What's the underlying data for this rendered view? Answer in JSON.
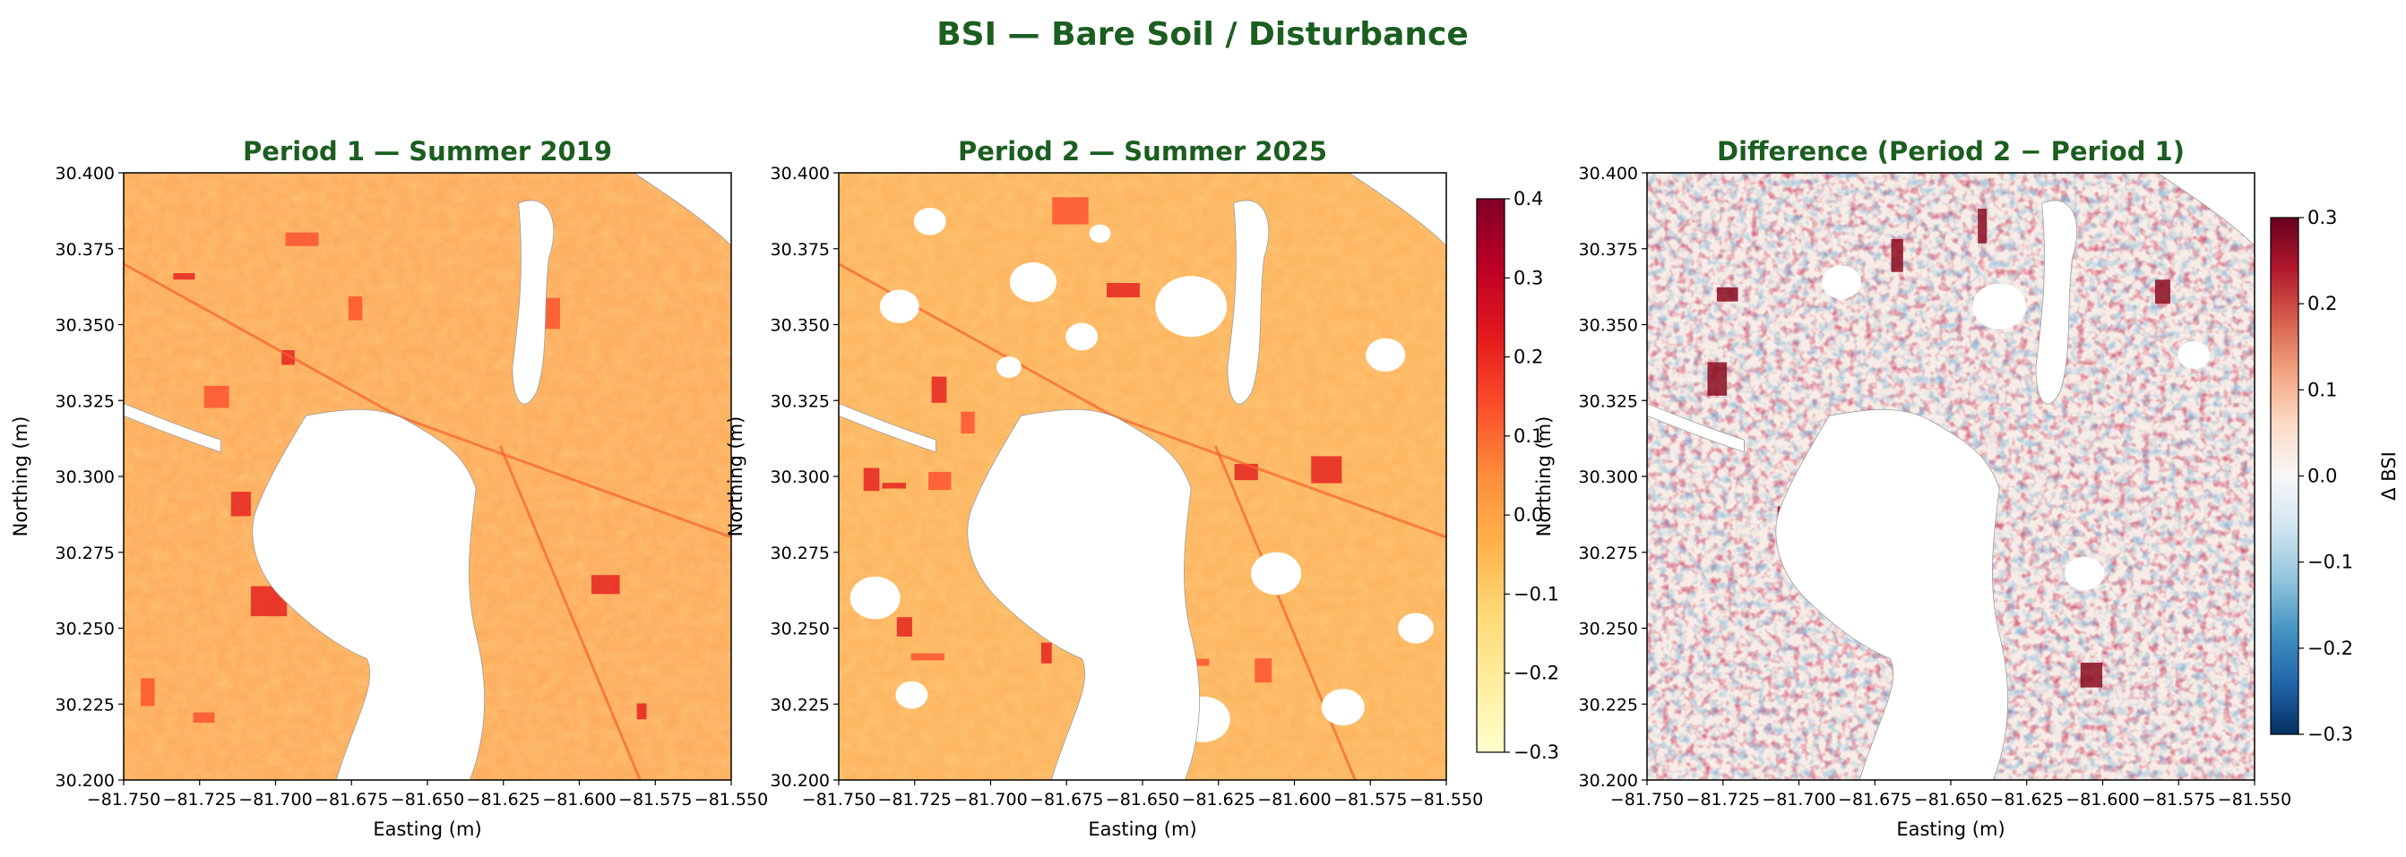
{
  "suptitle": "BSI — Bare Soil / Disturbance",
  "colors": {
    "title": "#1b5e20",
    "water": "#ffffff",
    "ylorrd": [
      "#ffffcc",
      "#ffeda0",
      "#fed976",
      "#feb24c",
      "#fd8d3c",
      "#fc4e2a",
      "#e31a1c",
      "#bd0026",
      "#800026"
    ],
    "rdbu": [
      "#053061",
      "#2166ac",
      "#4393c3",
      "#92c5de",
      "#d1e5f0",
      "#f7f7f7",
      "#fddbc7",
      "#f4a582",
      "#d6604d",
      "#b2182b",
      "#67001f"
    ]
  },
  "chart_data": [
    {
      "type": "heatmap",
      "title": "Period 1 — Summer 2019",
      "xlabel": "Easting (m)",
      "ylabel": "Northing (m)",
      "xlim": [
        -81.75,
        -81.55
      ],
      "ylim": [
        30.2,
        30.4
      ],
      "xticks": [
        "−81.750",
        "−81.725",
        "−81.700",
        "−81.675",
        "−81.650",
        "−81.625",
        "−81.600",
        "−81.575",
        "−81.550"
      ],
      "yticks": [
        "30.200",
        "30.225",
        "30.250",
        "30.275",
        "30.300",
        "30.325",
        "30.350",
        "30.375",
        "30.400"
      ],
      "colormap": "YlOrRd"
    },
    {
      "type": "heatmap",
      "title": "Period 2 — Summer 2025",
      "xlabel": "Easting (m)",
      "ylabel": "Northing (m)",
      "xlim": [
        -81.75,
        -81.55
      ],
      "ylim": [
        30.2,
        30.4
      ],
      "xticks": [
        "−81.750",
        "−81.725",
        "−81.700",
        "−81.675",
        "−81.650",
        "−81.625",
        "−81.600",
        "−81.575",
        "−81.550"
      ],
      "yticks": [
        "30.200",
        "30.225",
        "30.250",
        "30.275",
        "30.300",
        "30.325",
        "30.350",
        "30.375",
        "30.400"
      ],
      "colormap": "YlOrRd",
      "colorbar": {
        "range": [
          -0.3,
          0.4
        ],
        "ticks": [
          "0.4",
          "0.3",
          "0.2",
          "0.1",
          "0.0",
          "−0.1",
          "−0.2",
          "−0.3"
        ],
        "label": ""
      }
    },
    {
      "type": "heatmap",
      "title": "Difference  (Period 2 − Period 1)",
      "xlabel": "Easting (m)",
      "ylabel": "Northing (m)",
      "xlim": [
        -81.75,
        -81.55
      ],
      "ylim": [
        30.2,
        30.4
      ],
      "xticks": [
        "−81.750",
        "−81.725",
        "−81.700",
        "−81.675",
        "−81.650",
        "−81.625",
        "−81.600",
        "−81.575",
        "−81.550"
      ],
      "yticks": [
        "30.200",
        "30.225",
        "30.250",
        "30.275",
        "30.300",
        "30.325",
        "30.350",
        "30.375",
        "30.400"
      ],
      "colormap": "RdBu_r",
      "colorbar": {
        "range": [
          -0.3,
          0.3
        ],
        "ticks": [
          "0.3",
          "0.2",
          "0.1",
          "0.0",
          "−0.1",
          "−0.2",
          "−0.3"
        ],
        "label": "Δ BSI"
      }
    }
  ]
}
